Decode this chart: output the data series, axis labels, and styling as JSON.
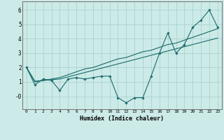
{
  "xlabel": "Humidex (Indice chaleur)",
  "bg_color": "#cceae7",
  "grid_color": "#aad4d0",
  "line_color": "#1a6b6b",
  "x": [
    0,
    1,
    2,
    3,
    4,
    5,
    6,
    7,
    8,
    9,
    10,
    11,
    12,
    13,
    14,
    15,
    16,
    17,
    18,
    19,
    20,
    21,
    22,
    23
  ],
  "y_main": [
    2.0,
    0.8,
    1.2,
    1.1,
    0.4,
    1.2,
    1.3,
    1.2,
    1.3,
    1.4,
    1.4,
    -0.1,
    -0.45,
    -0.1,
    -0.1,
    1.4,
    3.0,
    4.4,
    3.0,
    3.6,
    4.8,
    5.3,
    6.0,
    4.8
  ],
  "y_line1": [
    2.0,
    1.05,
    1.1,
    1.15,
    1.2,
    1.35,
    1.5,
    1.65,
    1.8,
    1.95,
    2.1,
    2.25,
    2.4,
    2.55,
    2.7,
    2.85,
    3.0,
    3.15,
    3.3,
    3.45,
    3.6,
    3.75,
    3.9,
    4.05
  ],
  "y_line2": [
    2.0,
    1.0,
    1.1,
    1.2,
    1.3,
    1.5,
    1.7,
    1.9,
    2.0,
    2.2,
    2.4,
    2.6,
    2.7,
    2.9,
    3.1,
    3.2,
    3.4,
    3.6,
    3.7,
    3.9,
    4.1,
    4.3,
    4.5,
    4.7
  ],
  "ylim": [
    -0.9,
    6.6
  ],
  "yticks": [
    0,
    1,
    2,
    3,
    4,
    5,
    6
  ],
  "ytick_labels": [
    "-0",
    "1",
    "2",
    "3",
    "4",
    "5",
    "6"
  ],
  "xlim": [
    -0.5,
    23.5
  ],
  "xticks": [
    0,
    1,
    2,
    3,
    4,
    5,
    6,
    7,
    8,
    9,
    10,
    11,
    12,
    13,
    14,
    15,
    16,
    17,
    18,
    19,
    20,
    21,
    22,
    23
  ]
}
